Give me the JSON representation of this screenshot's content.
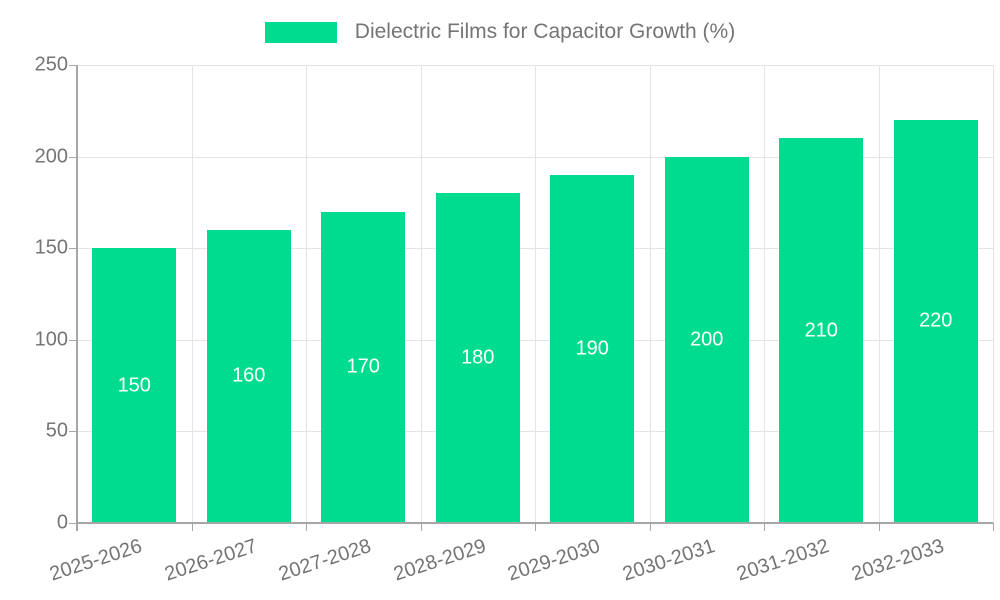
{
  "legend": {
    "label": "Dielectric Films for Capacitor Growth (%)",
    "swatch_color": "#00DC8F"
  },
  "chart_data": {
    "type": "bar",
    "title": "Dielectric Films for Capacitor Growth (%)",
    "categories": [
      "2025-2026",
      "2026-2027",
      "2027-2028",
      "2028-2029",
      "2029-2030",
      "2030-2031",
      "2031-2032",
      "2032-2033"
    ],
    "values": [
      150,
      160,
      170,
      180,
      190,
      200,
      210,
      220
    ],
    "value_labels": [
      "150",
      "160",
      "170",
      "180",
      "190",
      "200",
      "210",
      "220"
    ],
    "xlabel": "",
    "ylabel": "",
    "ylim": [
      0,
      250
    ],
    "yticks": [
      0,
      50,
      100,
      150,
      200,
      250
    ],
    "ytick_labels": [
      "0",
      "50",
      "100",
      "150",
      "200",
      "250"
    ],
    "grid": true,
    "legend_position": "top",
    "colors": {
      "bar": "#00DC8F",
      "bar_value_text": "#ffffff",
      "axis": "#a6a6a6",
      "grid": "#e4e4e4",
      "tick_text": "#757575",
      "background": "#ffffff"
    }
  }
}
